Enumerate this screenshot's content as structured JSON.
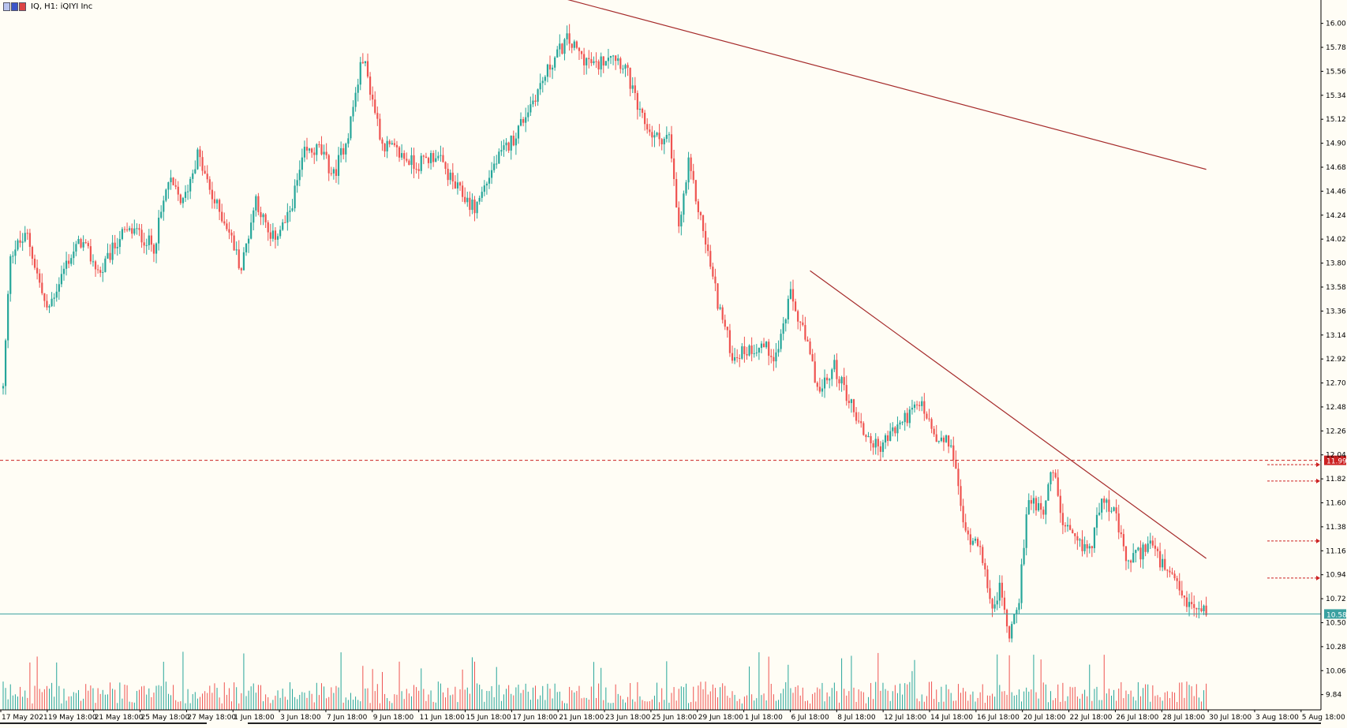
{
  "window": {
    "title": "IQ, H1:  iQIYI Inc"
  },
  "colors": {
    "background": "#fffdf5",
    "bull": "#26a69a",
    "bear": "#ef5350",
    "trendline": "#a52a2a",
    "support_line": "#3aa0a0",
    "resistance_line": "#cc2222",
    "axis": "#000000"
  },
  "chart_data": {
    "type": "candlestick",
    "title": "IQ, H1:  iQIYI Inc",
    "ylim": [
      9.7,
      16.2
    ],
    "y_ticks": [
      "16.00",
      "15.78",
      "15.56",
      "15.34",
      "15.12",
      "14.90",
      "14.68",
      "14.46",
      "14.24",
      "14.02",
      "13.80",
      "13.58",
      "13.36",
      "13.14",
      "12.92",
      "12.70",
      "12.48",
      "12.26",
      "12.04",
      "11.82",
      "11.60",
      "11.38",
      "11.16",
      "10.94",
      "10.72",
      "10.50",
      "10.28",
      "10.06",
      "9.84"
    ],
    "x_ticks": [
      "17 May 2021",
      "19 May 18:00",
      "21 May 18:00",
      "25 May 18:00",
      "27 May 18:00",
      "1 Jun 18:00",
      "3 Jun 18:00",
      "7 Jun 18:00",
      "9 Jun 18:00",
      "11 Jun 18:00",
      "15 Jun 18:00",
      "17 Jun 18:00",
      "21 Jun 18:00",
      "23 Jun 18:00",
      "25 Jun 18:00",
      "29 Jun 18:00",
      "1 Jul 18:00",
      "6 Jul 18:00",
      "8 Jul 18:00",
      "12 Jul 18:00",
      "14 Jul 18:00",
      "16 Jul 18:00",
      "20 Jul 18:00",
      "22 Jul 18:00",
      "26 Jul 18:00",
      "28 Jul 18:00",
      "30 Jul 18:00",
      "3 Aug 18:00",
      "5 Aug 18:00"
    ],
    "anchors": [
      [
        0,
        12.65
      ],
      [
        3,
        13.9
      ],
      [
        10,
        14.05
      ],
      [
        18,
        13.35
      ],
      [
        26,
        13.8
      ],
      [
        32,
        14.0
      ],
      [
        40,
        13.7
      ],
      [
        48,
        14.05
      ],
      [
        54,
        14.1
      ],
      [
        62,
        13.95
      ],
      [
        68,
        14.55
      ],
      [
        74,
        14.35
      ],
      [
        80,
        14.8
      ],
      [
        86,
        14.4
      ],
      [
        92,
        14.15
      ],
      [
        98,
        13.75
      ],
      [
        104,
        14.4
      ],
      [
        110,
        14.0
      ],
      [
        117,
        14.2
      ],
      [
        124,
        14.8
      ],
      [
        130,
        14.85
      ],
      [
        136,
        14.6
      ],
      [
        142,
        15.0
      ],
      [
        148,
        15.7
      ],
      [
        156,
        14.9
      ],
      [
        163,
        14.8
      ],
      [
        170,
        14.7
      ],
      [
        178,
        14.8
      ],
      [
        186,
        14.5
      ],
      [
        194,
        14.3
      ],
      [
        202,
        14.7
      ],
      [
        210,
        14.95
      ],
      [
        218,
        15.3
      ],
      [
        226,
        15.65
      ],
      [
        232,
        15.85
      ],
      [
        238,
        15.7
      ],
      [
        244,
        15.6
      ],
      [
        250,
        15.75
      ],
      [
        256,
        15.6
      ],
      [
        262,
        15.15
      ],
      [
        268,
        14.95
      ],
      [
        274,
        14.95
      ],
      [
        278,
        14.1
      ],
      [
        282,
        14.7
      ],
      [
        288,
        14.1
      ],
      [
        294,
        13.45
      ],
      [
        300,
        12.95
      ],
      [
        306,
        13.0
      ],
      [
        312,
        13.05
      ],
      [
        318,
        12.95
      ],
      [
        324,
        13.5
      ],
      [
        330,
        13.1
      ],
      [
        336,
        12.6
      ],
      [
        342,
        12.85
      ],
      [
        348,
        12.55
      ],
      [
        354,
        12.25
      ],
      [
        360,
        12.1
      ],
      [
        366,
        12.25
      ],
      [
        372,
        12.4
      ],
      [
        378,
        12.5
      ],
      [
        384,
        12.15
      ],
      [
        390,
        12.15
      ],
      [
        396,
        11.3
      ],
      [
        402,
        11.25
      ],
      [
        406,
        10.65
      ],
      [
        410,
        10.8
      ],
      [
        414,
        10.4
      ],
      [
        418,
        10.75
      ],
      [
        422,
        11.65
      ],
      [
        428,
        11.55
      ],
      [
        432,
        11.9
      ],
      [
        436,
        11.4
      ],
      [
        442,
        11.2
      ],
      [
        448,
        11.2
      ],
      [
        452,
        11.7
      ],
      [
        458,
        11.45
      ],
      [
        462,
        11.05
      ],
      [
        468,
        11.15
      ],
      [
        472,
        11.25
      ],
      [
        476,
        11.05
      ],
      [
        482,
        10.85
      ],
      [
        488,
        10.65
      ],
      [
        492,
        10.62
      ]
    ],
    "levels": [
      {
        "label": "11.99",
        "value": 11.99,
        "style": "dashed",
        "color": "#cc2222"
      },
      {
        "label": "10.58",
        "value": 10.58,
        "style": "solid",
        "color": "#3aa0a0"
      }
    ],
    "trendlines": [
      {
        "start": {
          "bar": 232,
          "price": 16.22
        },
        "end": {
          "bar": 495,
          "price": 14.66
        }
      },
      {
        "start": {
          "bar": 332,
          "price": 13.73
        },
        "end": {
          "bar": 495,
          "price": 11.09
        }
      }
    ],
    "arrows": [
      {
        "price": 11.95
      },
      {
        "price": 11.8
      },
      {
        "price": 11.25
      },
      {
        "price": 10.91
      }
    ]
  }
}
